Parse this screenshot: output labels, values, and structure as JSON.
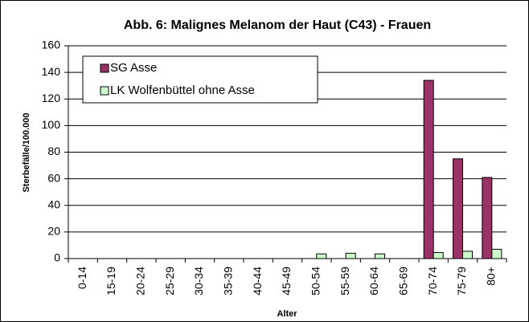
{
  "chart_data": {
    "type": "bar",
    "title": "Abb. 6: Malignes Melanom der Haut (C43) - Frauen",
    "x_label": "Alter",
    "y_label": "Sterbefälle/100.000",
    "categories": [
      "0-14",
      "15-19",
      "20-24",
      "25-29",
      "30-34",
      "35-39",
      "40-44",
      "45-49",
      "50-54",
      "55-59",
      "60-64",
      "65-69",
      "70-74",
      "75-79",
      "80+"
    ],
    "series": [
      {
        "name": "SG Asse",
        "color": "#993366",
        "values": [
          0,
          0,
          0,
          0,
          0,
          0,
          0,
          0,
          0,
          0,
          0,
          0,
          134,
          75,
          61
        ]
      },
      {
        "name": "LK Wolfenbüttel ohne Asse",
        "color": "#ccffcc",
        "values": [
          0,
          0,
          0,
          0,
          0,
          0,
          0,
          0,
          3.5,
          4,
          3.5,
          0,
          4.5,
          5.5,
          7
        ]
      }
    ],
    "ylim": [
      0,
      160
    ],
    "yticks": [
      0,
      20,
      40,
      60,
      80,
      100,
      120,
      140,
      160
    ],
    "grid": true,
    "legend": "top-left"
  }
}
